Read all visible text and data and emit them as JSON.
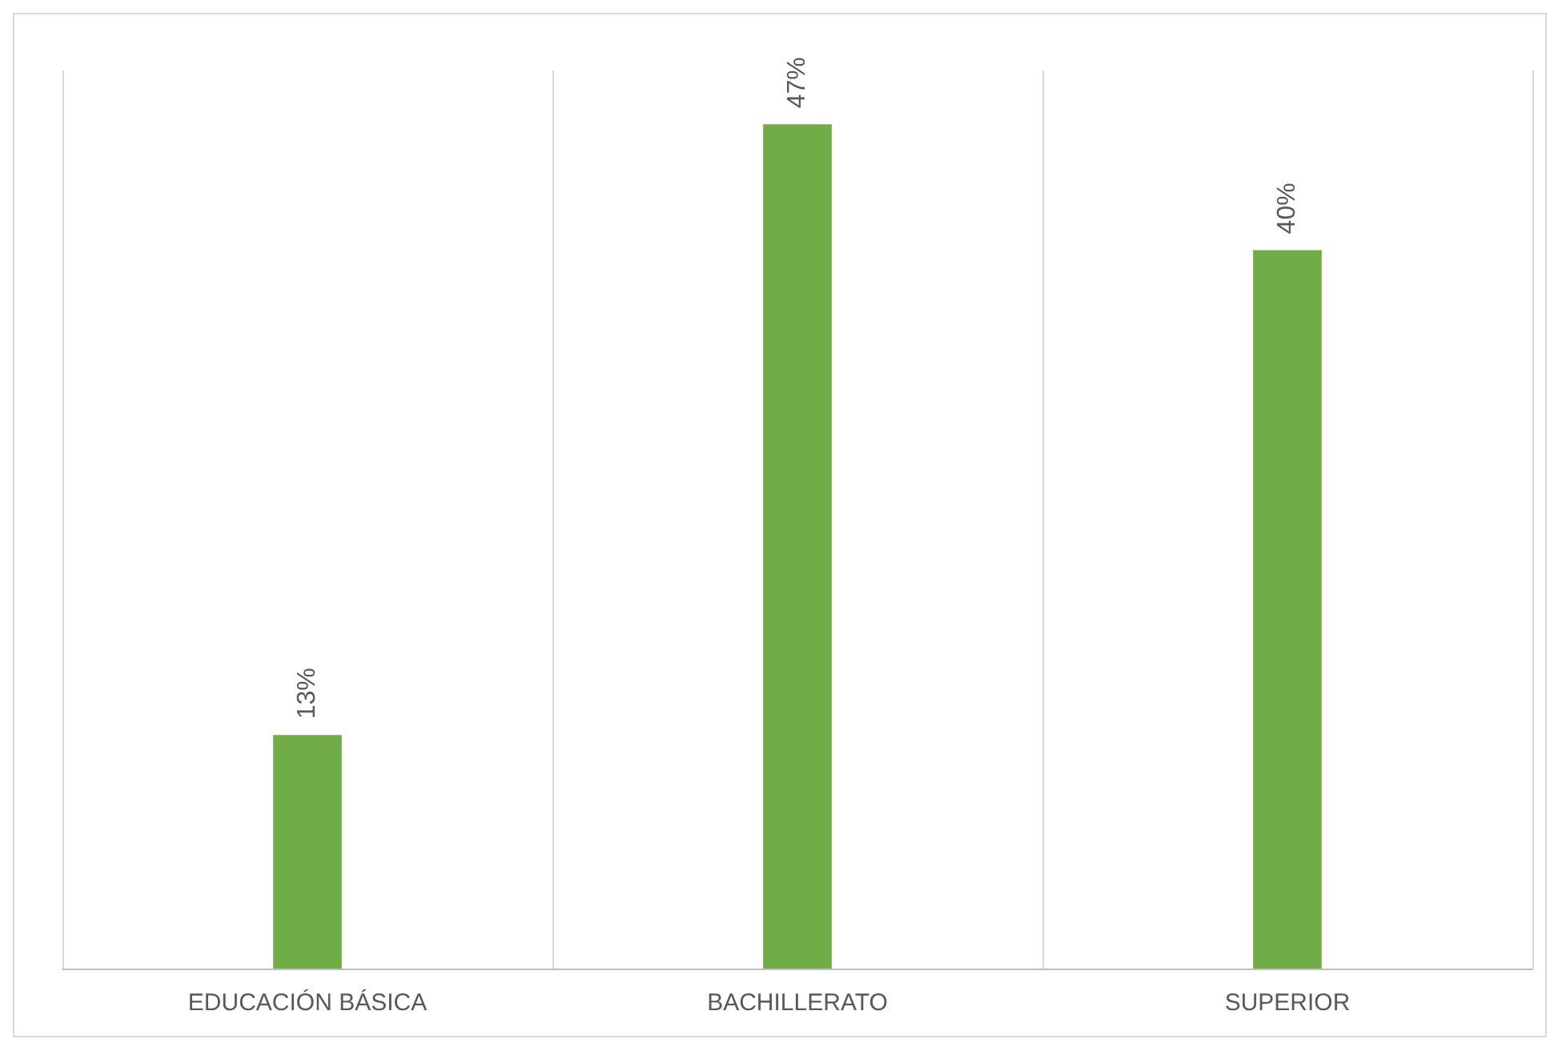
{
  "chart_data": {
    "type": "bar",
    "categories": [
      "EDUCACIÓN BÁSICA",
      "BACHILLERATO",
      "SUPERIOR"
    ],
    "values": [
      13,
      47,
      40
    ],
    "value_labels": [
      "13%",
      "47%",
      "40%"
    ],
    "color": "#70ad47",
    "grid": "x"
  }
}
